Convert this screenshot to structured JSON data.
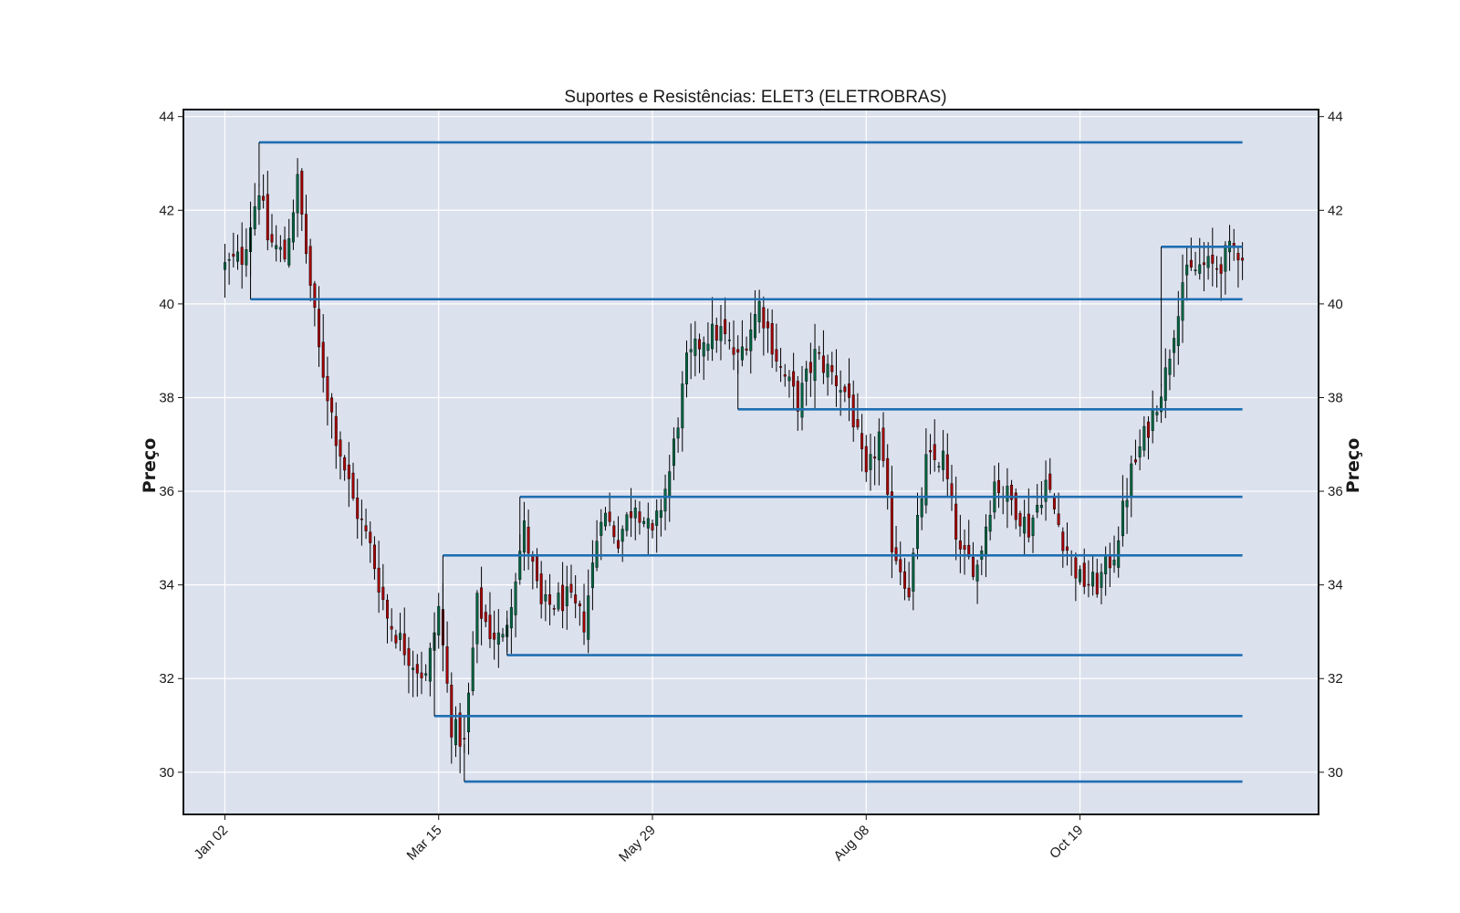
{
  "chart_data": {
    "type": "candlestick",
    "title": "Suportes e Resistências: ELET3 (ELETROBRAS)",
    "ylabel": "Preço",
    "ylabel_right": "Preço",
    "ylim": [
      29.1,
      44.15
    ],
    "yticks": [
      30,
      32,
      34,
      36,
      38,
      40,
      42,
      44
    ],
    "x_range": [
      -9.7,
      255.8
    ],
    "xticks": [
      {
        "index": 0,
        "label": "Jan 02"
      },
      {
        "index": 50,
        "label": "Mar 15"
      },
      {
        "index": 100,
        "label": "May 29"
      },
      {
        "index": 150,
        "label": "Aug 08"
      },
      {
        "index": 200,
        "label": "Oct 19"
      }
    ],
    "grid": true,
    "colors": {
      "plot_background": "#dce1ee",
      "grid": "#ffffff",
      "up_candle": "#006340",
      "down_candle": "#a30000",
      "wick": "#000000",
      "level_line": "#1f6fb2"
    },
    "anchors": [
      [
        0,
        40.8
      ],
      [
        4,
        41.0
      ],
      [
        8,
        42.5
      ],
      [
        10,
        41.4
      ],
      [
        14,
        41.0
      ],
      [
        17,
        42.6
      ],
      [
        19,
        41.1
      ],
      [
        22,
        39.0
      ],
      [
        26,
        37.2
      ],
      [
        30,
        35.8
      ],
      [
        34,
        34.8
      ],
      [
        38,
        33.3
      ],
      [
        43,
        32.5
      ],
      [
        47,
        32.0
      ],
      [
        50,
        33.5
      ],
      [
        53,
        31.0
      ],
      [
        56,
        30.6
      ],
      [
        59,
        33.6
      ],
      [
        62,
        33.0
      ],
      [
        65,
        32.8
      ],
      [
        70,
        35.2
      ],
      [
        74,
        33.5
      ],
      [
        80,
        33.7
      ],
      [
        84,
        33.2
      ],
      [
        88,
        35.6
      ],
      [
        92,
        35.0
      ],
      [
        96,
        35.8
      ],
      [
        100,
        35.0
      ],
      [
        104,
        36.4
      ],
      [
        108,
        38.7
      ],
      [
        112,
        39.3
      ],
      [
        116,
        39.4
      ],
      [
        120,
        38.8
      ],
      [
        125,
        40.0
      ],
      [
        130,
        38.6
      ],
      [
        134,
        37.9
      ],
      [
        138,
        38.9
      ],
      [
        142,
        38.5
      ],
      [
        146,
        38.0
      ],
      [
        150,
        36.2
      ],
      [
        153,
        37.2
      ],
      [
        156,
        34.9
      ],
      [
        160,
        33.9
      ],
      [
        164,
        36.6
      ],
      [
        168,
        36.7
      ],
      [
        172,
        34.6
      ],
      [
        176,
        34.4
      ],
      [
        180,
        36.2
      ],
      [
        184,
        35.8
      ],
      [
        188,
        35.2
      ],
      [
        192,
        36.2
      ],
      [
        196,
        35.0
      ],
      [
        200,
        34.1
      ],
      [
        204,
        34.0
      ],
      [
        208,
        34.7
      ],
      [
        212,
        36.4
      ],
      [
        216,
        37.4
      ],
      [
        220,
        38.5
      ],
      [
        224,
        40.5
      ],
      [
        228,
        40.8
      ],
      [
        232,
        40.8
      ],
      [
        236,
        41.2
      ],
      [
        240,
        41.0
      ],
      [
        243,
        40.7
      ],
      [
        246,
        41.8
      ],
      [
        238,
        40.6
      ]
    ],
    "levels": [
      {
        "start": 8,
        "value": 43.45
      },
      {
        "start": 6,
        "value": 40.1
      },
      {
        "start": 120,
        "value": 37.75
      },
      {
        "start": 69,
        "value": 35.88
      },
      {
        "start": 51,
        "value": 34.63
      },
      {
        "start": 66,
        "value": 32.5
      },
      {
        "start": 49,
        "value": 31.2
      },
      {
        "start": 56,
        "value": 29.8
      },
      {
        "start": 219,
        "value": 41.22
      }
    ],
    "level_end": 238
  }
}
